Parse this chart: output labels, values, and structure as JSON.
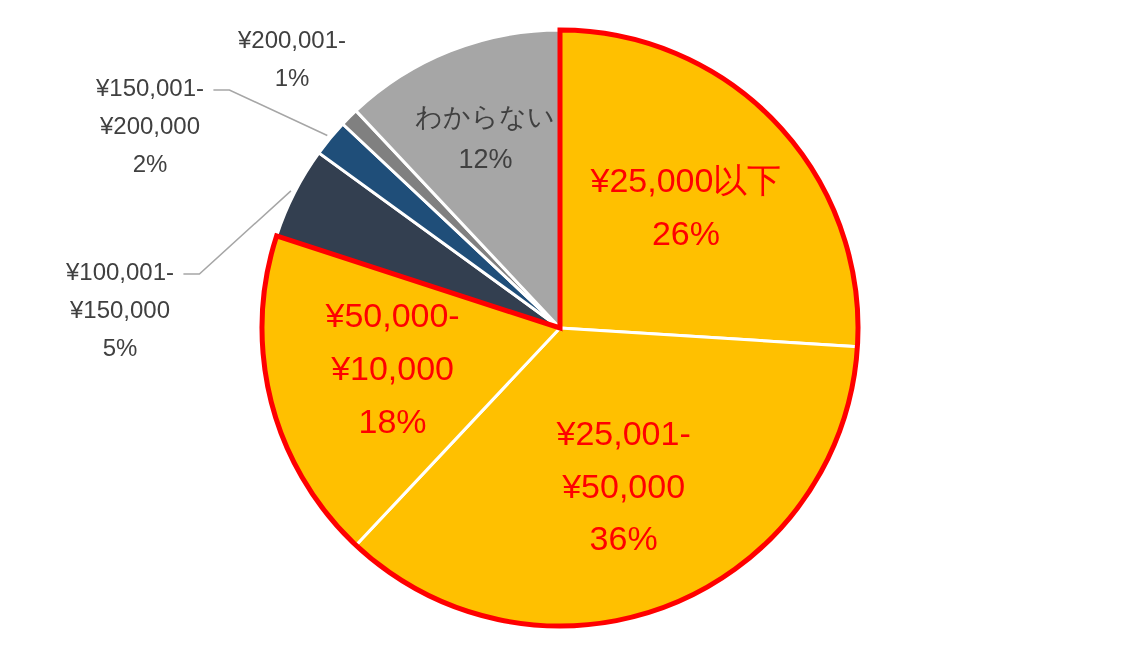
{
  "chart_data": {
    "type": "pie",
    "categories": [
      "¥25,000以下",
      "¥25,001-¥50,000",
      "¥50,000-¥10,000",
      "¥100,001-¥150,000",
      "¥150,001-¥200,000",
      "¥200,001-",
      "わからない"
    ],
    "values": [
      26,
      36,
      18,
      5,
      2,
      1,
      12
    ],
    "colors": [
      "#ffc000",
      "#ffc000",
      "#ffc000",
      "#333f50",
      "#1f4e79",
      "#808080",
      "#a6a6a6"
    ],
    "value_labels": [
      "26%",
      "36%",
      "18%",
      "5%",
      "2%",
      "1%",
      "12%"
    ]
  }
}
